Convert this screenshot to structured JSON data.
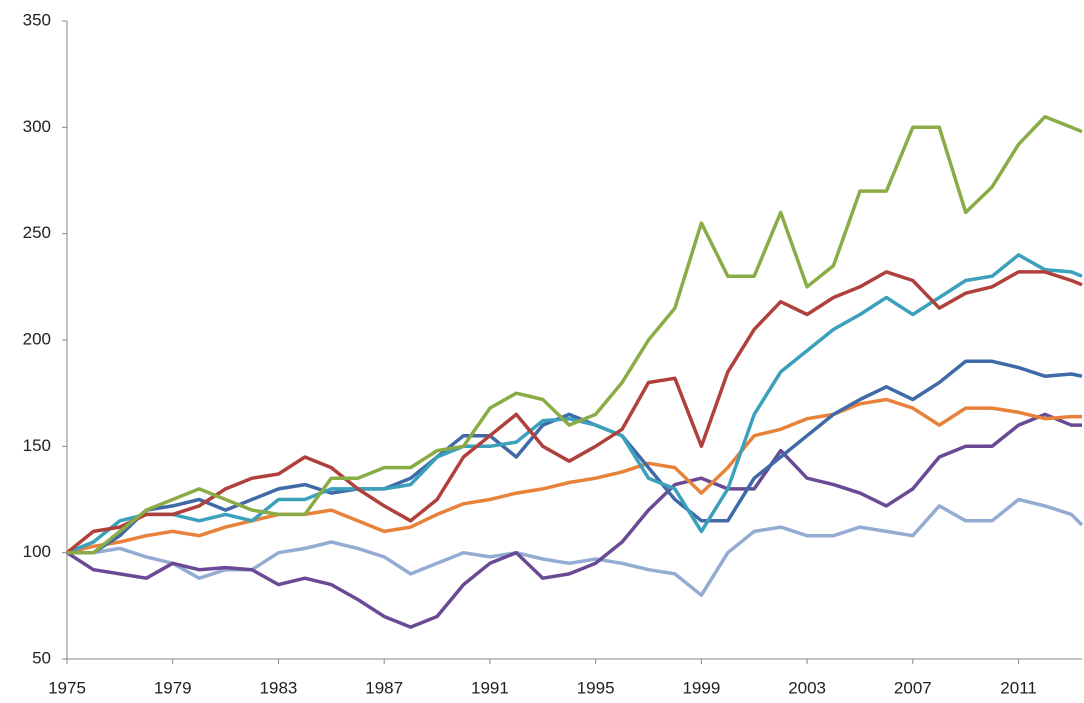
{
  "chart_data": {
    "type": "line",
    "x": [
      1975,
      1976,
      1977,
      1978,
      1979,
      1980,
      1981,
      1982,
      1983,
      1984,
      1985,
      1986,
      1987,
      1988,
      1989,
      1990,
      1991,
      1992,
      1993,
      1994,
      1995,
      1996,
      1997,
      1998,
      1999,
      2000,
      2001,
      2002,
      2003,
      2004,
      2005,
      2006,
      2007,
      2008,
      2009,
      2010,
      2011,
      2012,
      2013,
      2013.4
    ],
    "xlim": [
      1975,
      2013.4
    ],
    "xticks": [
      1975,
      1979,
      1983,
      1987,
      1991,
      1995,
      1999,
      2003,
      2007,
      2011
    ],
    "ylim": [
      50,
      350
    ],
    "yticks": [
      50,
      100,
      150,
      200,
      250,
      300,
      350
    ],
    "grid": false,
    "series": [
      {
        "color": "#94acd4",
        "values": [
          100,
          100,
          102,
          98,
          95,
          88,
          92,
          92,
          100,
          102,
          105,
          102,
          98,
          90,
          95,
          100,
          98,
          100,
          97,
          95,
          97,
          95,
          92,
          90,
          80,
          100,
          110,
          112,
          108,
          108,
          112,
          110,
          108,
          122,
          115,
          115,
          125,
          122,
          118,
          113
        ]
      },
      {
        "color": "#6a4a94",
        "values": [
          100,
          92,
          90,
          88,
          95,
          92,
          93,
          92,
          85,
          88,
          85,
          78,
          70,
          65,
          70,
          85,
          95,
          100,
          88,
          90,
          95,
          105,
          120,
          132,
          135,
          130,
          130,
          148,
          135,
          132,
          128,
          122,
          130,
          145,
          150,
          150,
          160,
          165,
          160,
          160
        ]
      },
      {
        "color": "#e8823a",
        "values": [
          100,
          103,
          105,
          108,
          110,
          108,
          112,
          115,
          118,
          118,
          120,
          115,
          110,
          112,
          118,
          123,
          125,
          128,
          130,
          133,
          135,
          138,
          142,
          140,
          128,
          140,
          155,
          158,
          163,
          165,
          170,
          172,
          168,
          160,
          168,
          168,
          166,
          163,
          164,
          164
        ]
      },
      {
        "color": "#3f6aa8",
        "values": [
          100,
          100,
          108,
          120,
          122,
          125,
          120,
          125,
          130,
          132,
          128,
          130,
          130,
          135,
          145,
          155,
          155,
          145,
          160,
          165,
          160,
          155,
          140,
          125,
          115,
          115,
          135,
          145,
          155,
          165,
          172,
          178,
          172,
          180,
          190,
          190,
          187,
          183,
          184,
          183
        ]
      },
      {
        "color": "#3aa0bc",
        "values": [
          100,
          105,
          115,
          118,
          118,
          115,
          118,
          115,
          125,
          125,
          130,
          130,
          130,
          132,
          145,
          150,
          150,
          152,
          162,
          163,
          160,
          155,
          135,
          130,
          110,
          130,
          165,
          185,
          195,
          205,
          212,
          220,
          212,
          220,
          228,
          230,
          240,
          233,
          232,
          230
        ]
      },
      {
        "color": "#b0403c",
        "values": [
          100,
          110,
          112,
          118,
          118,
          122,
          130,
          135,
          137,
          145,
          140,
          130,
          122,
          115,
          125,
          145,
          155,
          165,
          150,
          143,
          150,
          158,
          180,
          182,
          150,
          185,
          205,
          218,
          212,
          220,
          225,
          232,
          228,
          215,
          222,
          225,
          232,
          232,
          228,
          226
        ]
      },
      {
        "color": "#8aac46",
        "values": [
          100,
          100,
          110,
          120,
          125,
          130,
          125,
          120,
          118,
          118,
          135,
          135,
          140,
          140,
          148,
          150,
          168,
          175,
          172,
          160,
          165,
          180,
          200,
          215,
          255,
          230,
          230,
          260,
          225,
          235,
          270,
          270,
          300,
          300,
          260,
          272,
          292,
          305,
          300,
          298
        ]
      }
    ]
  }
}
